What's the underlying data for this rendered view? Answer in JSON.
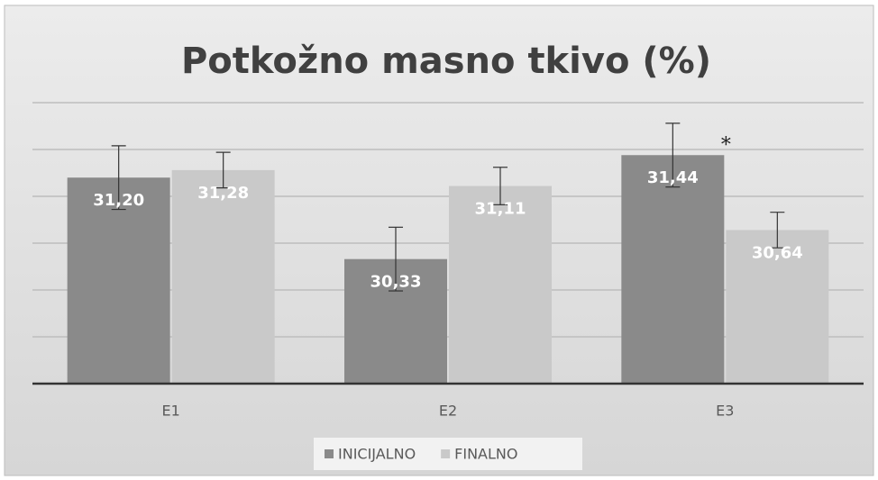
{
  "chart_data": {
    "type": "bar",
    "title": "Potkožno masno tkivo (%)",
    "categories": [
      "E1",
      "E2",
      "E3"
    ],
    "series": [
      {
        "name": "INICIJALNO",
        "color": "#8a8a8a",
        "values": [
          31.2,
          30.33,
          31.44
        ],
        "value_labels": [
          "31,20",
          "30,33",
          "31,44"
        ],
        "errors": [
          0.34,
          0.34,
          0.34
        ]
      },
      {
        "name": "FINALNO",
        "color": "#c9c9c9",
        "values": [
          31.28,
          31.11,
          30.64
        ],
        "value_labels": [
          "31,28",
          "31,11",
          "30,64"
        ],
        "errors": [
          0.19,
          0.2,
          0.19
        ]
      }
    ],
    "ylim": [
      29,
      32
    ],
    "yticks": [
      29,
      29.5,
      30,
      30.5,
      31,
      31.5,
      32
    ],
    "grid": true,
    "legend": "bottom",
    "annotations": [
      {
        "text": "*",
        "category": 2,
        "series": 0
      }
    ]
  }
}
